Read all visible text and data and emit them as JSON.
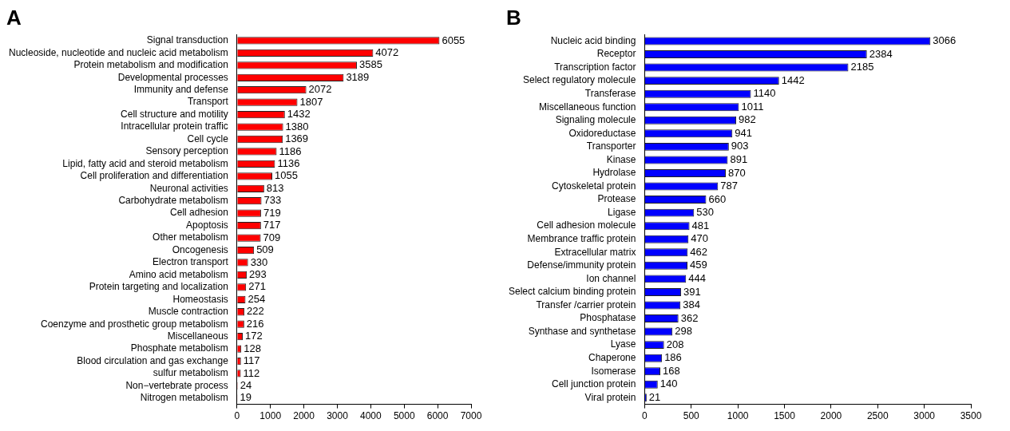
{
  "chart_data": [
    {
      "type": "bar",
      "orientation": "horizontal",
      "title": "A",
      "categories": [
        "Signal transduction",
        "Nucleoside, nucleotide and nucleic acid metabolism",
        "Protein metabolism and modification",
        "Developmental processes",
        "Immunity and defense",
        "Transport",
        "Cell structure and motility",
        "Intracellular protein traffic",
        "Cell cycle",
        "Sensory perception",
        "Lipid, fatty acid and steroid metabolism",
        "Cell proliferation and differentiation",
        "Neuronal activities",
        "Carbohydrate metabolism",
        "Cell adhesion",
        "Apoptosis",
        "Other metabolism",
        "Oncogenesis",
        "Electron transport",
        "Amino acid metabolism",
        "Protein targeting and localization",
        "Homeostasis",
        "Muscle contraction",
        "Coenzyme and prosthetic group metabolism",
        "Miscellaneous",
        "Phosphate metabolism",
        "Blood circulation and gas exchange",
        "sulfur metabolism",
        "Non−vertebrate process",
        "Nitrogen metabolism"
      ],
      "values": [
        6055,
        4072,
        3585,
        3189,
        2072,
        1807,
        1432,
        1380,
        1369,
        1186,
        1136,
        1055,
        813,
        733,
        719,
        717,
        709,
        509,
        330,
        293,
        271,
        254,
        222,
        216,
        172,
        128,
        117,
        112,
        24,
        19
      ],
      "color": "#ff0000",
      "xlim": [
        0,
        7000
      ],
      "xticks": [
        0,
        1000,
        2000,
        3000,
        4000,
        5000,
        6000,
        7000
      ],
      "data_labels": true
    },
    {
      "type": "bar",
      "orientation": "horizontal",
      "title": "B",
      "categories": [
        "Nucleic acid binding",
        "Receptor",
        "Transcription factor",
        "Select regulatory molecule",
        "Transferase",
        "Miscellaneous function",
        "Signaling molecule",
        "Oxidoreductase",
        "Transporter",
        "Kinase",
        "Hydrolase",
        "Cytoskeletal protein",
        "Protease",
        "Ligase",
        "Cell adhesion molecule",
        "Membrance traffic protein",
        "Extracellular matrix",
        "Defense/immunity protein",
        "Ion channel",
        "Select calcium binding protein",
        "Transfer /carrier protein",
        "Phosphatase",
        "Synthase and synthetase",
        "Lyase",
        "Chaperone",
        "Isomerase",
        "Cell junction protein",
        "Viral protein"
      ],
      "values": [
        3066,
        2384,
        2185,
        1442,
        1140,
        1011,
        982,
        941,
        903,
        891,
        870,
        787,
        660,
        530,
        481,
        470,
        462,
        459,
        444,
        391,
        384,
        362,
        298,
        208,
        186,
        168,
        140,
        21
      ],
      "color": "#0000ff",
      "xlim": [
        0,
        3500
      ],
      "xticks": [
        0,
        500,
        1000,
        1500,
        2000,
        2500,
        3000,
        3500
      ],
      "data_labels": true
    }
  ]
}
